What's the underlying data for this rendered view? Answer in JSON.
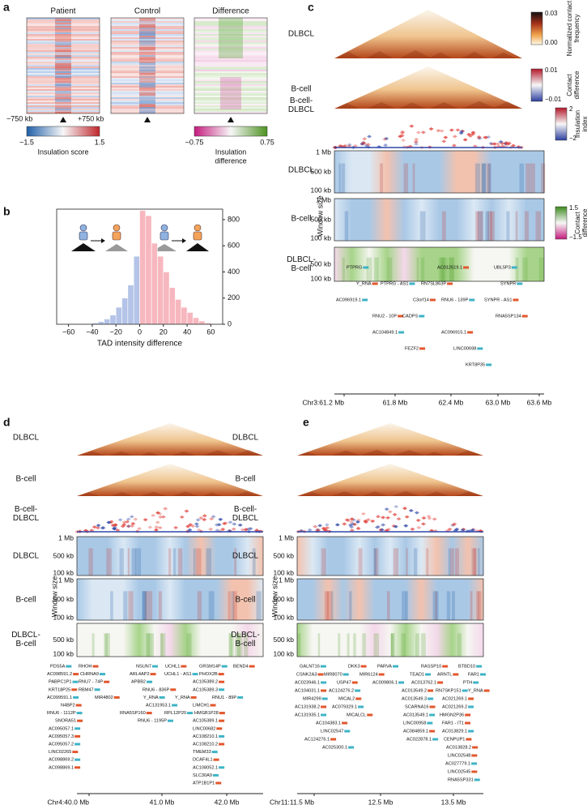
{
  "panel_a": {
    "letter": "a",
    "heatmaps": [
      "Patient",
      "Control",
      "Difference"
    ],
    "left_end": "−750 kb",
    "right_end": "+750 kb",
    "colorbars": [
      {
        "min": "−1.5",
        "max": "1.5",
        "label": [
          "Insulation score"
        ]
      },
      {
        "min": "−0.75",
        "max": "0.75",
        "label": [
          "Insulation",
          "difference"
        ]
      }
    ]
  },
  "chart_data": {
    "type": "histogram",
    "letter": "b",
    "xlabel": "TAD intensity difference",
    "series": [
      {
        "color": "#b4c4e8",
        "bins": [
          -50,
          -45,
          -40,
          -35,
          -30,
          -25,
          -20,
          -15,
          -10,
          -5,
          0
        ],
        "values": [
          2,
          5,
          10,
          20,
          40,
          70,
          130,
          200,
          300,
          520
        ]
      },
      {
        "color": "#f7b7be",
        "bins": [
          0,
          5,
          10,
          15,
          20,
          25,
          30,
          35,
          40,
          45,
          50,
          55,
          60,
          65
        ],
        "values": [
          870,
          830,
          620,
          520,
          400,
          280,
          190,
          130,
          90,
          50,
          25,
          10,
          5
        ]
      }
    ],
    "xlim": [
      -70,
      70
    ],
    "xticks": [
      {
        "value": -60,
        "label": "−60"
      },
      {
        "value": -40,
        "label": "−40"
      },
      {
        "value": -20,
        "label": "−20"
      },
      0,
      20,
      40,
      60
    ],
    "ylim": [
      0,
      880
    ],
    "yticks": [
      0,
      200,
      400,
      600,
      800
    ],
    "y_axis_side": "right"
  },
  "panel_c": {
    "letter": "c",
    "rows": [
      [
        "DLBCL"
      ],
      [
        "B-cell"
      ],
      [
        "B-cell-",
        "DLBCL"
      ],
      [
        "DLBCL"
      ],
      [
        "B-cell"
      ],
      [
        "DLBCL-",
        "B-cell"
      ]
    ],
    "window_label": "Window size",
    "window_ticks": [
      "1 Mb",
      "500 kb",
      "100 kb"
    ],
    "colorbars": [
      {
        "max": "0.03",
        "min": "0.00",
        "label": [
          "Normalized contact",
          "frequency"
        ]
      },
      {
        "max": "0.01",
        "min": "−0.01",
        "label": [
          "Contact",
          "difference"
        ]
      },
      {
        "max": "2",
        "min": "−2",
        "label": [
          "Insulation",
          "index"
        ]
      },
      {
        "max": "1.5",
        "min": "−1.5",
        "label": [
          "Contact",
          "difference"
        ]
      }
    ],
    "genes": [
      [
        "PTPRG",
        "AC012519.1",
        "UBL5P3"
      ],
      [
        "Y_RNA",
        "PTPRG - AS1",
        "RN7SL863P",
        "SYNPR"
      ],
      [
        "AC096919.1",
        "C3orf14",
        "RNU6 - 139P",
        "SYNPR - AS1"
      ],
      [
        "RNU2 - 10P",
        "CADPS",
        "RNA5SP134"
      ],
      [
        "AC104849.1",
        "AC096915.1"
      ],
      [
        "FEZF2",
        "LINC00698"
      ],
      [
        "KRT8P35"
      ]
    ],
    "axis_ticks": [
      "Chr3:61.2 Mb",
      "61.8 Mb",
      "62.4 Mb",
      "63.0 Mb",
      "63.6 Mb"
    ]
  },
  "panel_d": {
    "letter": "d",
    "rows": [
      [
        "DLBCL"
      ],
      [
        "B-cell"
      ],
      [
        "B-cell-",
        "DLBCL"
      ],
      [
        "DLBCL"
      ],
      [
        "B-cell"
      ],
      [
        "DLBCL-",
        "B-cell"
      ]
    ],
    "window_label": "Window size",
    "window_ticks": [
      "1 Mb",
      "500 kb",
      "100 kb"
    ],
    "genes": [
      [
        "PDS5A",
        "RHOH",
        "NSUN7",
        "UCHL1",
        "GRSM14P",
        "BEND4"
      ],
      [
        "AC098591.2",
        "CHRNA9",
        "ARL4AP2",
        "UCHL1 - AS1",
        "PHOX2B"
      ],
      [
        "PABPC1P1",
        "RNU7 - 74P",
        "APBB2",
        "AC105389.2"
      ],
      [
        "KRT18P25",
        "RBM47",
        "RNU6 - 836P",
        "AC105389.3"
      ],
      [
        "AC099591.1",
        "MIR4802",
        "Y_RNA",
        "Y_RNA",
        "RNU1 - 89P"
      ],
      [
        "N4BP2",
        "AC131953.1",
        "LIMCH1"
      ],
      [
        "RNU6 - 1112P",
        "RNA5SP160",
        "RPL12P20",
        "HMGB1P28"
      ],
      [
        "SNORA51",
        "RNU6 - 1195P",
        "AC105389.1"
      ],
      [
        "AC095057.1",
        "LINC00682"
      ],
      [
        "AC095057.3",
        "AC108210.1"
      ],
      [
        "AC095057.2",
        "AC108210.2"
      ],
      [
        "LINC02265",
        "TMEM33"
      ],
      [
        "AC098869.2",
        "DCAF4L1"
      ],
      [
        "AC098869.1",
        "AC108052.1"
      ],
      [
        "SLC30A9"
      ],
      [
        "ATP1B1P1"
      ]
    ],
    "axis_ticks": [
      "Chr4:40.0 Mb",
      "41.0 Mb",
      "42.0 Mb"
    ]
  },
  "panel_e": {
    "letter": "e",
    "rows": [
      [
        "DLBCL"
      ],
      [
        "B-cell"
      ],
      [
        "B-cell-",
        "DLBCL"
      ],
      [
        "DLBCL"
      ],
      [
        "B-cell"
      ],
      [
        "DLBCL-",
        "B-cell"
      ]
    ],
    "window_label": "Window size",
    "window_ticks": [
      "1 Mb",
      "500 kb",
      "100 kb"
    ],
    "genes": [
      [
        "GALNT16",
        "DKK3",
        "PARVA",
        "RASSP10",
        "BTBD10"
      ],
      [
        "CSNK2A3",
        "MIR8070",
        "MIR6124",
        "TEAD1",
        "ARNTL",
        "FAR1"
      ],
      [
        "AC023946.1",
        "USP47",
        "AC009806.1",
        "AC013762.1",
        "PTH"
      ],
      [
        "AC104031.1",
        "AC124276.2",
        "AC013549.2",
        "RN7SKP151",
        "Y_RNA"
      ],
      [
        "MIR4299",
        "MICAL2",
        "AC013549.3",
        "AC021269.1"
      ],
      [
        "AC131938.2",
        "AC079329.1",
        "SCARNA16",
        "AC021269.2"
      ],
      [
        "AC131935.1",
        "MICALCL",
        "AC013549.1",
        "HMGN2P36"
      ],
      [
        "AC104383.1",
        "LINC00958",
        "FAR1 - IT1"
      ],
      [
        "LINC02547",
        "AC084859.1",
        "AC013829.1"
      ],
      [
        "AC124276.1",
        "AC022878.1",
        "CENPUP1"
      ],
      [
        "AC025300.1",
        "AC013828.2"
      ],
      [
        "LINC02548"
      ],
      [
        "AC027779.1"
      ],
      [
        "LINC02545"
      ],
      [
        "RNA5SP331"
      ]
    ],
    "axis_ticks": [
      "Chr11:11.5 Mb",
      "12.5 Mb",
      "13.5 Mb"
    ]
  }
}
